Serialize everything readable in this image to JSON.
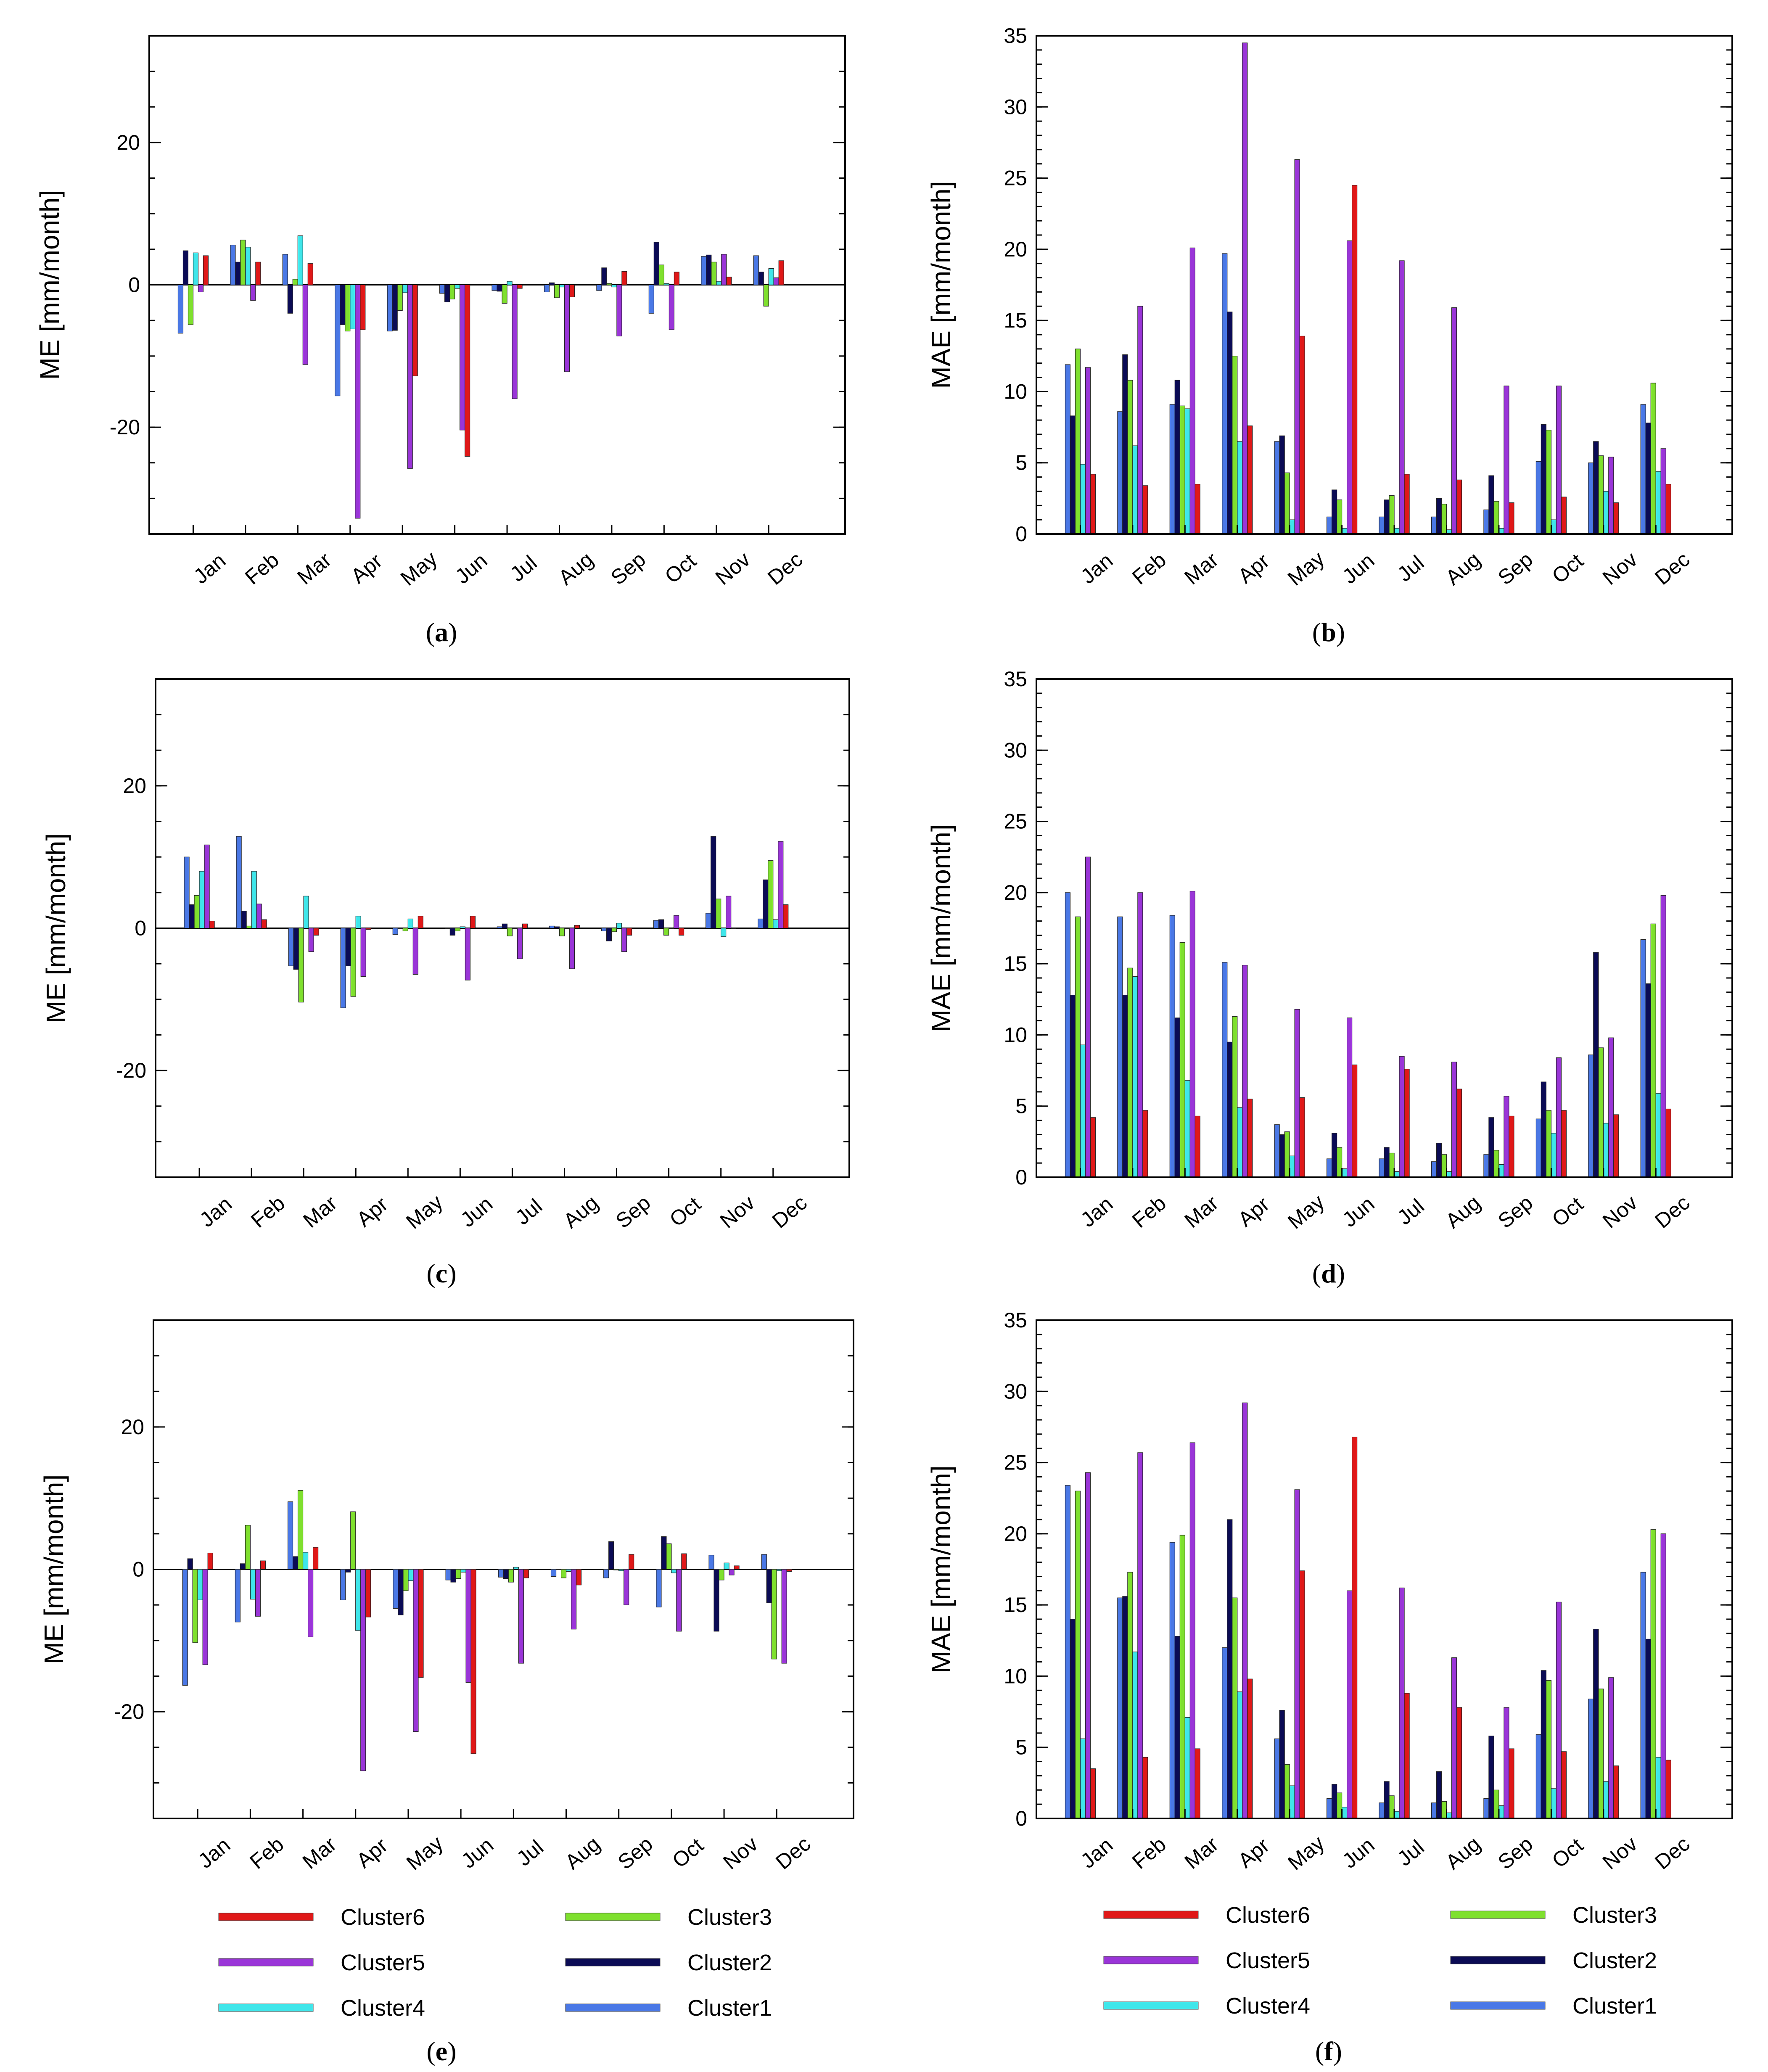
{
  "months": [
    "Jan",
    "Feb",
    "Mar",
    "Apr",
    "May",
    "Jun",
    "Jul",
    "Aug",
    "Sep",
    "Oct",
    "Nov",
    "Dec"
  ],
  "series_order": [
    "Cluster1",
    "Cluster2",
    "Cluster3",
    "Cluster4",
    "Cluster5",
    "Cluster6"
  ],
  "colors": {
    "Cluster1": "#4a78e6",
    "Cluster2": "#0b0b55",
    "Cluster3": "#7fe02e",
    "Cluster4": "#3fe6ea",
    "Cluster5": "#9a35d8",
    "Cluster6": "#e01818"
  },
  "legends": [
    {
      "panel": "e",
      "entries": [
        {
          "label": "Cluster6",
          "series": "Cluster6"
        },
        {
          "label": "Cluster3",
          "series": "Cluster3"
        },
        {
          "label": "Cluster5",
          "series": "Cluster5"
        },
        {
          "label": "Cluster2",
          "series": "Cluster2"
        },
        {
          "label": "Cluster4",
          "series": "Cluster4"
        },
        {
          "label": "Cluster1",
          "series": "Cluster1"
        }
      ]
    },
    {
      "panel": "f",
      "entries": [
        {
          "label": "Cluster6",
          "series": "Cluster6"
        },
        {
          "label": "Cluster3",
          "series": "Cluster3"
        },
        {
          "label": "Cluster5",
          "series": "Cluster5"
        },
        {
          "label": "Cluster2",
          "series": "Cluster2"
        },
        {
          "label": "Cluster4",
          "series": "Cluster4"
        },
        {
          "label": "Cluster1",
          "series": "Cluster1"
        }
      ]
    }
  ],
  "chart_data": [
    {
      "id": "a",
      "caption": "a",
      "type": "bar",
      "ylabel": "ME [mm/month]",
      "ylim": [
        -35,
        35
      ],
      "yticks": [
        -20,
        0,
        20
      ],
      "minor_step": 5,
      "categories": [
        "Jan",
        "Feb",
        "Mar",
        "Apr",
        "May",
        "Jun",
        "Jul",
        "Aug",
        "Sep",
        "Oct",
        "Nov",
        "Dec"
      ],
      "series": [
        {
          "name": "Cluster1",
          "values": [
            -6.8,
            5.6,
            4.3,
            -15.6,
            -6.5,
            -1.2,
            -0.8,
            -1.0,
            -0.8,
            -4.0,
            4.0,
            4.1
          ]
        },
        {
          "name": "Cluster2",
          "values": [
            4.8,
            3.2,
            -4.0,
            -5.6,
            -6.4,
            -2.4,
            -0.9,
            0.3,
            2.4,
            6.0,
            4.2,
            1.8
          ]
        },
        {
          "name": "Cluster3",
          "values": [
            -5.6,
            6.3,
            0.8,
            -6.5,
            -3.6,
            -2.0,
            -2.6,
            -1.8,
            0.2,
            2.8,
            3.2,
            -3.0
          ]
        },
        {
          "name": "Cluster4",
          "values": [
            4.5,
            5.3,
            6.9,
            -6.2,
            -1.1,
            -0.5,
            0.5,
            -0.3,
            -0.3,
            0.2,
            0.5,
            2.3
          ]
        },
        {
          "name": "Cluster5",
          "values": [
            -1.0,
            -2.2,
            -11.2,
            -32.8,
            -25.8,
            -20.4,
            -16.0,
            -12.2,
            -7.2,
            -6.3,
            4.3,
            1.0
          ]
        },
        {
          "name": "Cluster6",
          "values": [
            4.1,
            3.2,
            3.0,
            -6.3,
            -12.8,
            -24.1,
            -0.5,
            -1.7,
            1.9,
            1.8,
            1.1,
            3.4
          ]
        }
      ]
    },
    {
      "id": "b",
      "caption": "b",
      "type": "bar",
      "ylabel": "MAE [mm/month]",
      "ylim": [
        0,
        35
      ],
      "yticks": [
        0,
        5,
        10,
        15,
        20,
        25,
        30,
        35
      ],
      "minor_step": 1,
      "categories": [
        "Jan",
        "Feb",
        "Mar",
        "Apr",
        "May",
        "Jun",
        "Jul",
        "Aug",
        "Sep",
        "Oct",
        "Nov",
        "Dec"
      ],
      "series": [
        {
          "name": "Cluster1",
          "values": [
            11.9,
            8.6,
            9.1,
            19.7,
            6.5,
            1.2,
            1.2,
            1.2,
            1.7,
            5.1,
            5.0,
            9.1
          ]
        },
        {
          "name": "Cluster2",
          "values": [
            8.3,
            12.6,
            10.8,
            15.6,
            6.9,
            3.1,
            2.4,
            2.5,
            4.1,
            7.7,
            6.5,
            7.8
          ]
        },
        {
          "name": "Cluster3",
          "values": [
            13.0,
            10.8,
            9.0,
            12.5,
            4.3,
            2.4,
            2.7,
            2.1,
            2.3,
            7.3,
            5.5,
            10.6
          ]
        },
        {
          "name": "Cluster4",
          "values": [
            4.9,
            6.2,
            8.8,
            6.5,
            1.0,
            0.4,
            0.4,
            0.3,
            0.4,
            1.0,
            3.0,
            4.4
          ]
        },
        {
          "name": "Cluster5",
          "values": [
            11.7,
            16.0,
            20.1,
            34.5,
            26.3,
            20.6,
            19.2,
            15.9,
            10.4,
            10.4,
            5.4,
            6.0
          ]
        },
        {
          "name": "Cluster6",
          "values": [
            4.2,
            3.4,
            3.5,
            7.6,
            13.9,
            24.5,
            4.2,
            3.8,
            2.2,
            2.6,
            2.2,
            3.5
          ]
        }
      ]
    },
    {
      "id": "c",
      "caption": "c",
      "type": "bar",
      "ylabel": "ME [mm/month]",
      "ylim": [
        -35,
        35
      ],
      "yticks": [
        -20,
        0,
        20
      ],
      "minor_step": 5,
      "categories": [
        "Jan",
        "Feb",
        "Mar",
        "Apr",
        "May",
        "Jun",
        "Jul",
        "Aug",
        "Sep",
        "Oct",
        "Nov",
        "Dec"
      ],
      "series": [
        {
          "name": "Cluster1",
          "values": [
            10.0,
            12.9,
            -5.3,
            -11.2,
            -0.9,
            0.0,
            0.2,
            0.3,
            -0.4,
            1.1,
            2.1,
            1.3
          ]
        },
        {
          "name": "Cluster2",
          "values": [
            3.3,
            2.4,
            -5.8,
            -5.3,
            0.0,
            -1.0,
            0.6,
            0.2,
            -1.8,
            1.2,
            12.9,
            6.8
          ]
        },
        {
          "name": "Cluster3",
          "values": [
            4.6,
            0.3,
            -10.4,
            -9.6,
            -0.4,
            -0.4,
            -1.1,
            -1.1,
            -0.5,
            -1.0,
            4.1,
            9.5
          ]
        },
        {
          "name": "Cluster4",
          "values": [
            8.0,
            8.0,
            4.5,
            1.7,
            1.3,
            0.2,
            0.0,
            0.0,
            0.7,
            0.0,
            -1.2,
            1.2
          ]
        },
        {
          "name": "Cluster5",
          "values": [
            11.7,
            3.4,
            -3.3,
            -6.8,
            -6.5,
            -7.3,
            -4.3,
            -5.7,
            -3.3,
            1.8,
            4.5,
            12.2
          ]
        },
        {
          "name": "Cluster6",
          "values": [
            1.0,
            1.2,
            -1.0,
            -0.2,
            1.7,
            1.7,
            0.6,
            0.4,
            -1.0,
            -1.0,
            0.0,
            3.3
          ]
        }
      ]
    },
    {
      "id": "d",
      "caption": "d",
      "type": "bar",
      "ylabel": "MAE [mm/month]",
      "ylim": [
        0,
        35
      ],
      "yticks": [
        0,
        5,
        10,
        15,
        20,
        25,
        30,
        35
      ],
      "minor_step": 1,
      "categories": [
        "Jan",
        "Feb",
        "Mar",
        "Apr",
        "May",
        "Jun",
        "Jul",
        "Aug",
        "Sep",
        "Oct",
        "Nov",
        "Dec"
      ],
      "series": [
        {
          "name": "Cluster1",
          "values": [
            20.0,
            18.3,
            18.4,
            15.1,
            3.7,
            1.3,
            1.3,
            1.1,
            1.6,
            4.1,
            8.6,
            16.7
          ]
        },
        {
          "name": "Cluster2",
          "values": [
            12.8,
            12.8,
            11.2,
            9.5,
            3.0,
            3.1,
            2.1,
            2.4,
            4.2,
            6.7,
            15.8,
            13.6
          ]
        },
        {
          "name": "Cluster3",
          "values": [
            18.3,
            14.7,
            16.5,
            11.3,
            3.2,
            2.1,
            1.7,
            1.6,
            1.9,
            4.7,
            9.1,
            17.8
          ]
        },
        {
          "name": "Cluster4",
          "values": [
            9.3,
            14.1,
            6.8,
            4.9,
            1.5,
            0.6,
            0.4,
            0.4,
            0.9,
            3.1,
            3.8,
            5.9
          ]
        },
        {
          "name": "Cluster5",
          "values": [
            22.5,
            20.0,
            20.1,
            14.9,
            11.8,
            11.2,
            8.5,
            8.1,
            5.7,
            8.4,
            9.8,
            19.8
          ]
        },
        {
          "name": "Cluster6",
          "values": [
            4.2,
            4.7,
            4.3,
            5.5,
            5.6,
            7.9,
            7.6,
            6.2,
            4.3,
            4.7,
            4.4,
            4.8
          ]
        }
      ]
    },
    {
      "id": "e",
      "caption": "e",
      "type": "bar",
      "ylabel": "ME [mm/month]",
      "ylim": [
        -35,
        35
      ],
      "yticks": [
        -20,
        0,
        20
      ],
      "minor_step": 5,
      "categories": [
        "Jan",
        "Feb",
        "Mar",
        "Apr",
        "May",
        "Jun",
        "Jul",
        "Aug",
        "Sep",
        "Oct",
        "Nov",
        "Dec"
      ],
      "series": [
        {
          "name": "Cluster1",
          "values": [
            -16.3,
            -7.4,
            9.5,
            -4.3,
            -5.5,
            -1.5,
            -1.1,
            -1.0,
            -1.2,
            -5.3,
            2.0,
            2.1
          ]
        },
        {
          "name": "Cluster2",
          "values": [
            1.5,
            0.8,
            1.8,
            -0.4,
            -6.4,
            -1.8,
            -1.3,
            0.0,
            3.9,
            4.6,
            -8.7,
            -4.7
          ]
        },
        {
          "name": "Cluster3",
          "values": [
            -10.3,
            6.2,
            11.1,
            8.1,
            -3.0,
            -1.3,
            -1.8,
            -1.2,
            -0.1,
            3.6,
            -1.5,
            -12.6
          ]
        },
        {
          "name": "Cluster4",
          "values": [
            -4.3,
            -4.2,
            2.4,
            -8.6,
            -1.6,
            -0.4,
            0.3,
            -0.3,
            -0.2,
            -0.5,
            0.9,
            -0.2
          ]
        },
        {
          "name": "Cluster5",
          "values": [
            -13.4,
            -6.6,
            -9.5,
            -28.3,
            -22.8,
            -15.9,
            -13.2,
            -8.4,
            -5.0,
            -8.7,
            -0.8,
            -13.2
          ]
        },
        {
          "name": "Cluster6",
          "values": [
            2.3,
            1.2,
            3.1,
            -6.7,
            -15.2,
            -25.9,
            -1.2,
            -2.2,
            2.1,
            2.2,
            0.5,
            -0.3
          ]
        }
      ]
    },
    {
      "id": "f",
      "caption": "f",
      "type": "bar",
      "ylabel": "MAE [mm/month]",
      "ylim": [
        0,
        35
      ],
      "yticks": [
        0,
        5,
        10,
        15,
        20,
        25,
        30,
        35
      ],
      "minor_step": 1,
      "categories": [
        "Jan",
        "Feb",
        "Mar",
        "Apr",
        "May",
        "Jun",
        "Jul",
        "Aug",
        "Sep",
        "Oct",
        "Nov",
        "Dec"
      ],
      "series": [
        {
          "name": "Cluster1",
          "values": [
            23.4,
            15.5,
            19.4,
            12.0,
            5.6,
            1.4,
            1.1,
            1.1,
            1.4,
            5.9,
            8.4,
            17.3
          ]
        },
        {
          "name": "Cluster2",
          "values": [
            14.0,
            15.6,
            12.8,
            21.0,
            7.6,
            2.4,
            2.6,
            3.3,
            5.8,
            10.4,
            13.3,
            12.6
          ]
        },
        {
          "name": "Cluster3",
          "values": [
            23.0,
            17.3,
            19.9,
            15.5,
            3.8,
            1.8,
            1.6,
            1.2,
            2.0,
            9.7,
            9.1,
            20.3
          ]
        },
        {
          "name": "Cluster4",
          "values": [
            5.6,
            11.7,
            7.1,
            8.9,
            2.3,
            0.8,
            0.5,
            0.4,
            0.9,
            2.1,
            2.6,
            4.3
          ]
        },
        {
          "name": "Cluster5",
          "values": [
            24.3,
            25.7,
            26.4,
            29.2,
            23.1,
            16.0,
            16.2,
            11.3,
            7.8,
            15.2,
            9.9,
            20.0
          ]
        },
        {
          "name": "Cluster6",
          "values": [
            3.5,
            4.3,
            4.9,
            9.8,
            17.4,
            26.8,
            8.8,
            7.8,
            4.9,
            4.7,
            3.7,
            4.1
          ]
        }
      ]
    }
  ]
}
